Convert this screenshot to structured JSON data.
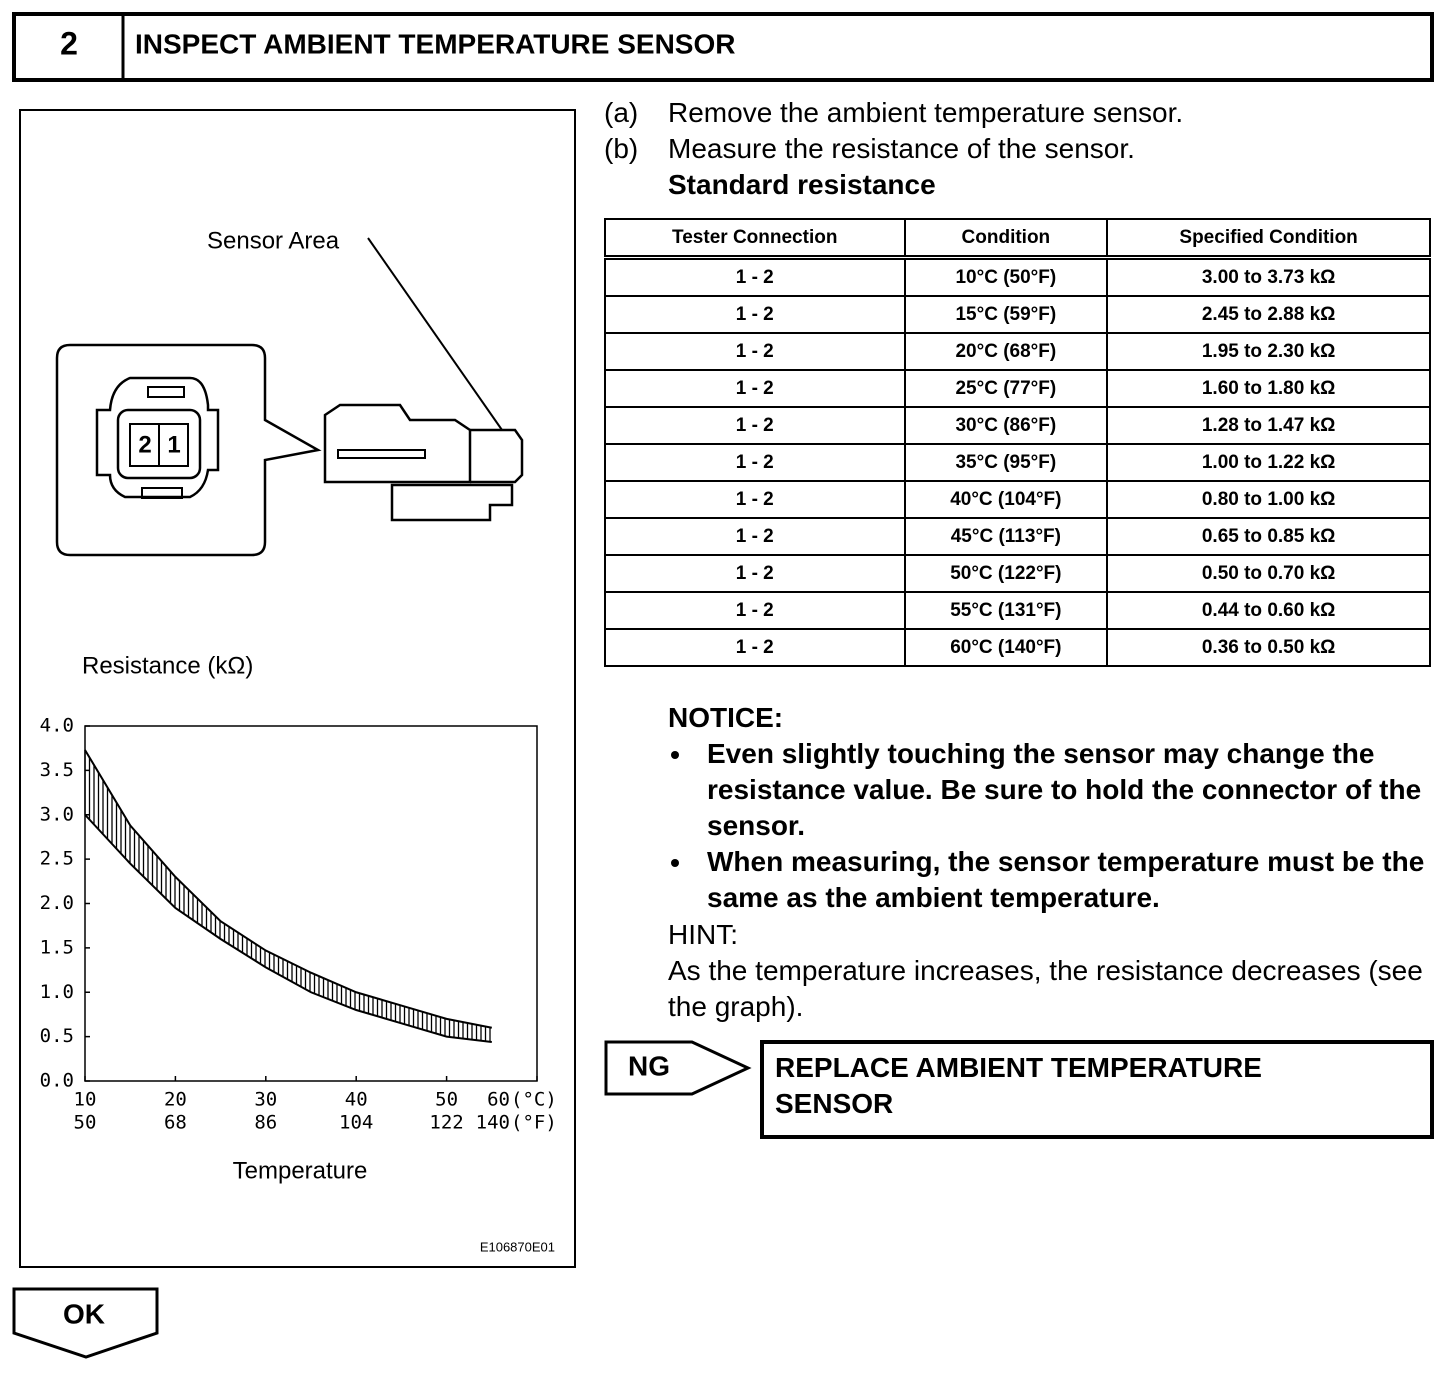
{
  "header": {
    "step": "2",
    "title": "INSPECT AMBIENT TEMPERATURE SENSOR"
  },
  "figure": {
    "sensor_label": "Sensor Area",
    "pins": [
      "2",
      "1"
    ],
    "code": "E106870E01"
  },
  "chart_data": {
    "type": "band",
    "y_label": "Resistance (kΩ)",
    "x_label": "Temperature",
    "x_unit": "(°C)",
    "x2_unit": "(°F)",
    "x": [
      10,
      15,
      20,
      25,
      30,
      35,
      40,
      45,
      50,
      55
    ],
    "series": [
      {
        "color": "#000000",
        "values": [
          3.0,
          2.45,
          1.95,
          1.6,
          1.28,
          1.0,
          0.8,
          0.65,
          0.5,
          0.44
        ]
      },
      {
        "color": "#000000",
        "values": [
          3.73,
          2.88,
          2.3,
          1.8,
          1.47,
          1.22,
          1.0,
          0.85,
          0.7,
          0.6
        ]
      }
    ],
    "xlim": [
      10,
      60
    ],
    "xticks": [
      10,
      20,
      30,
      40,
      50,
      60
    ],
    "x2ticks": [
      50,
      68,
      86,
      104,
      122,
      140
    ],
    "ylim": [
      0,
      4
    ],
    "yticks": [
      {
        "value": 0,
        "label": "0.0"
      },
      {
        "value": 0.5,
        "label": "0.5"
      },
      {
        "value": 1,
        "label": "1.0"
      },
      {
        "value": 1.5,
        "label": "1.5"
      },
      {
        "value": 2,
        "label": "2.0"
      },
      {
        "value": 2.5,
        "label": "2.5"
      },
      {
        "value": 3,
        "label": "3.0"
      },
      {
        "value": 3.5,
        "label": "3.5"
      },
      {
        "value": 4,
        "label": "4.0"
      }
    ]
  },
  "steps": [
    {
      "label": "(a)",
      "text": "Remove the ambient temperature sensor."
    },
    {
      "label": "(b)",
      "text": "Measure the resistance of the sensor."
    }
  ],
  "standard": "Standard resistance",
  "table": {
    "header": [
      "Tester Connection",
      "Condition",
      "Specified Condition"
    ],
    "rows": [
      [
        "1 - 2",
        "10°C (50°F)",
        "3.00 to 3.73 kΩ"
      ],
      [
        "1 - 2",
        "15°C (59°F)",
        "2.45 to 2.88 kΩ"
      ],
      [
        "1 - 2",
        "20°C (68°F)",
        "1.95 to 2.30 kΩ"
      ],
      [
        "1 - 2",
        "25°C (77°F)",
        "1.60 to 1.80 kΩ"
      ],
      [
        "1 - 2",
        "30°C (86°F)",
        "1.28 to 1.47 kΩ"
      ],
      [
        "1 - 2",
        "35°C (95°F)",
        "1.00 to 1.22 kΩ"
      ],
      [
        "1 - 2",
        "40°C (104°F)",
        "0.80 to 1.00 kΩ"
      ],
      [
        "1 - 2",
        "45°C (113°F)",
        "0.65 to 0.85 kΩ"
      ],
      [
        "1 - 2",
        "50°C (122°F)",
        "0.50 to 0.70 kΩ"
      ],
      [
        "1 - 2",
        "55°C (131°F)",
        "0.44 to 0.60 kΩ"
      ],
      [
        "1 - 2",
        "60°C (140°F)",
        "0.36 to 0.50 kΩ"
      ]
    ]
  },
  "notice": {
    "title": "NOTICE:",
    "items": [
      "Even slightly touching the sensor may change the resistance value. Be sure to hold the connector of the sensor.",
      "When measuring, the sensor temperature must be the same as the ambient temperature."
    ]
  },
  "hint": {
    "title": "HINT:",
    "text": "As the temperature increases, the resistance decreases (see the graph)."
  },
  "ng": {
    "label": "NG",
    "action": "REPLACE AMBIENT TEMPERATURE SENSOR"
  },
  "ok": "OK"
}
